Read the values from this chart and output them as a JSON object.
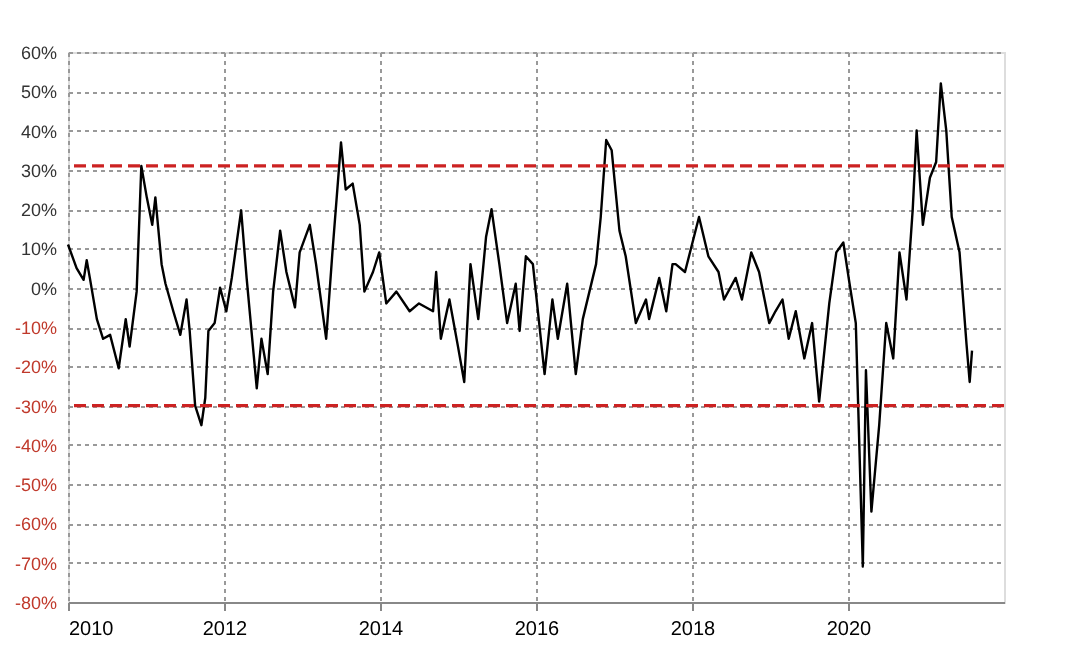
{
  "chart_data": {
    "type": "line",
    "x": [
      2010.0,
      2010.11,
      2010.2,
      2010.24,
      2010.28,
      2010.37,
      2010.45,
      2010.54,
      2010.65,
      2010.74,
      2010.79,
      2010.88,
      2010.94,
      2011.01,
      2011.08,
      2011.12,
      2011.2,
      2011.25,
      2011.35,
      2011.44,
      2011.52,
      2011.56,
      2011.63,
      2011.71,
      2011.76,
      2011.8,
      2011.88,
      2011.95,
      2012.03,
      2012.1,
      2012.22,
      2012.29,
      2012.42,
      2012.48,
      2012.56,
      2012.63,
      2012.72,
      2012.8,
      2012.91,
      2012.97,
      2013.1,
      2013.18,
      2013.31,
      2013.39,
      2013.5,
      2013.56,
      2013.65,
      2013.74,
      2013.8,
      2013.91,
      2013.99,
      2014.08,
      2014.21,
      2014.38,
      2014.5,
      2014.68,
      2014.72,
      2014.78,
      2014.89,
      2015.0,
      2015.08,
      2015.16,
      2015.26,
      2015.36,
      2015.43,
      2015.53,
      2015.63,
      2015.74,
      2015.79,
      2015.87,
      2015.96,
      2016.11,
      2016.21,
      2016.28,
      2016.4,
      2016.51,
      2016.6,
      2016.77,
      2016.83,
      2016.9,
      2016.97,
      2017.07,
      2017.15,
      2017.28,
      2017.41,
      2017.45,
      2017.58,
      2017.67,
      2017.75,
      2017.79,
      2017.91,
      2018.09,
      2018.21,
      2018.34,
      2018.41,
      2018.56,
      2018.64,
      2018.76,
      2018.86,
      2018.99,
      2019.07,
      2019.16,
      2019.24,
      2019.33,
      2019.44,
      2019.54,
      2019.63,
      2019.76,
      2019.85,
      2019.94,
      2020.02,
      2020.1,
      2020.19,
      2020.23,
      2020.3,
      2020.4,
      2020.49,
      2020.58,
      2020.66,
      2020.75,
      2020.83,
      2020.88,
      2020.96,
      2021.05,
      2021.13,
      2021.19,
      2021.26,
      2021.33,
      2021.43,
      2021.52,
      2021.56,
      2021.59
    ],
    "series": [
      {
        "color": "#000000",
        "values": [
          11,
          5,
          2,
          7,
          2.5,
          -8,
          -13,
          -12,
          -20.5,
          -8,
          -15,
          -1,
          31,
          23,
          16,
          23,
          6,
          1,
          -6,
          -12,
          -3,
          -11,
          -30,
          -35,
          -28,
          -11,
          -9,
          0,
          -6,
          2.5,
          19.7,
          2.5,
          -25.6,
          -13,
          -22,
          -1,
          14.5,
          4,
          -5,
          9,
          16,
          6,
          -13,
          9,
          37,
          25,
          26.5,
          16,
          -1,
          4,
          9,
          -4,
          -1,
          -6,
          -4,
          -6,
          4,
          -13,
          -3,
          -15,
          -24,
          6,
          -8,
          13,
          20,
          6,
          -9,
          1,
          -11,
          8,
          6,
          -22,
          -3,
          -13,
          1,
          -22,
          -8,
          6,
          18,
          37.6,
          35,
          14.5,
          8,
          -9,
          -3,
          -8,
          2.5,
          -6,
          6,
          6,
          4,
          18,
          8,
          4,
          -3,
          2.5,
          -3,
          9,
          4,
          -9,
          -6,
          -3,
          -13,
          -6,
          -18,
          -9,
          -29,
          -4,
          9,
          11.5,
          1,
          -9,
          -71,
          -21,
          -57,
          -35,
          -9,
          -18,
          9,
          -3,
          20,
          40,
          16,
          28,
          32,
          52,
          40,
          18,
          9,
          -14.5,
          -24,
          -16
        ]
      }
    ],
    "xlim": [
      2010,
      2022
    ],
    "xticks": [
      2010,
      2012,
      2014,
      2016,
      2018,
      2020
    ],
    "ylim": [
      -80,
      60
    ],
    "yticks": [
      {
        "value": 60,
        "label": "60%"
      },
      {
        "value": 50,
        "label": "50%"
      },
      {
        "value": 40,
        "label": "40%"
      },
      {
        "value": 30,
        "label": "30%"
      },
      {
        "value": 20,
        "label": "20%"
      },
      {
        "value": 10,
        "label": "10%"
      },
      {
        "value": 0,
        "label": "0%"
      },
      {
        "value": -10,
        "label": "-10%"
      },
      {
        "value": -20,
        "label": "-20%"
      },
      {
        "value": -30,
        "label": "-30%"
      },
      {
        "value": -40,
        "label": "-40%"
      },
      {
        "value": -50,
        "label": "-50%"
      },
      {
        "value": -60,
        "label": "-60%"
      },
      {
        "value": -70,
        "label": "-70%"
      },
      {
        "value": -80,
        "label": "-80%"
      }
    ],
    "ref_lines": [
      {
        "axis": "y",
        "value": 31,
        "color": "#cc2222",
        "line_style": "dashed"
      },
      {
        "axis": "y",
        "value": -30,
        "color": "#cc2222",
        "line_style": "dashed"
      }
    ],
    "grid": true,
    "line_style": "solid",
    "marker": "none"
  }
}
